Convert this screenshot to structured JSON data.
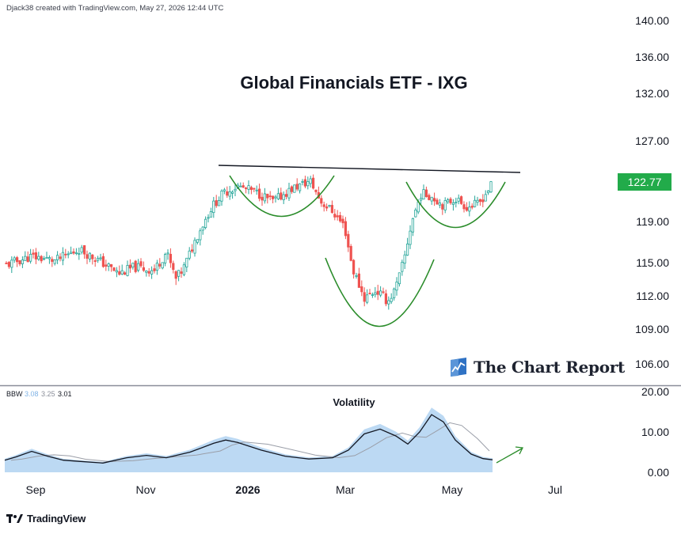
{
  "attribution": "Djack38 created with TradingView.com, May 27, 2026 12:44 UTC",
  "branding": {
    "tradingview": "TradingView",
    "chart_report": "The Chart Report"
  },
  "colors": {
    "up": "#26a69a",
    "down": "#ef5350",
    "curve": "#2a8c2a",
    "bbw_fill": "#bcd9f3",
    "price_tag": "#22ab4a"
  },
  "chart_data": [
    {
      "type": "candlestick",
      "title": "Global Financials ETF - IXG",
      "xlabel": "",
      "ylabel": "",
      "ylim": [
        104,
        142
      ],
      "y_ticks": [
        "140.00",
        "136.00",
        "132.00",
        "127.00",
        "119.00",
        "115.00",
        "112.00",
        "109.00",
        "106.00"
      ],
      "x_ticks": [
        "Sep",
        "Nov",
        "2026",
        "Mar",
        "May",
        "Jul"
      ],
      "last_price": "122.77",
      "resistance_line": {
        "start": 124.2,
        "end": 123.4
      },
      "pattern": "cup-and-handle",
      "approx_closes": [
        {
          "period": "Sep",
          "value": 115.5
        },
        {
          "period": "Oct",
          "value": 116.0
        },
        {
          "period": "Nov",
          "value": 114.5
        },
        {
          "period": "Dec",
          "value": 121.0
        },
        {
          "period": "Jan",
          "value": 123.0
        },
        {
          "period": "Feb",
          "value": 121.5
        },
        {
          "period": "Mar",
          "value": 112.0
        },
        {
          "period": "Apr",
          "value": 116.0
        },
        {
          "period": "May",
          "value": 121.5
        },
        {
          "period": "May 27",
          "value": 122.77
        }
      ]
    },
    {
      "type": "area",
      "title": "Volatility",
      "indicator": "BBW",
      "legend_values": [
        "3.08",
        "3.25",
        "3.01"
      ],
      "ylim": [
        0,
        20
      ],
      "y_ticks": [
        "20.00",
        "10.00",
        "0.00"
      ]
    }
  ]
}
